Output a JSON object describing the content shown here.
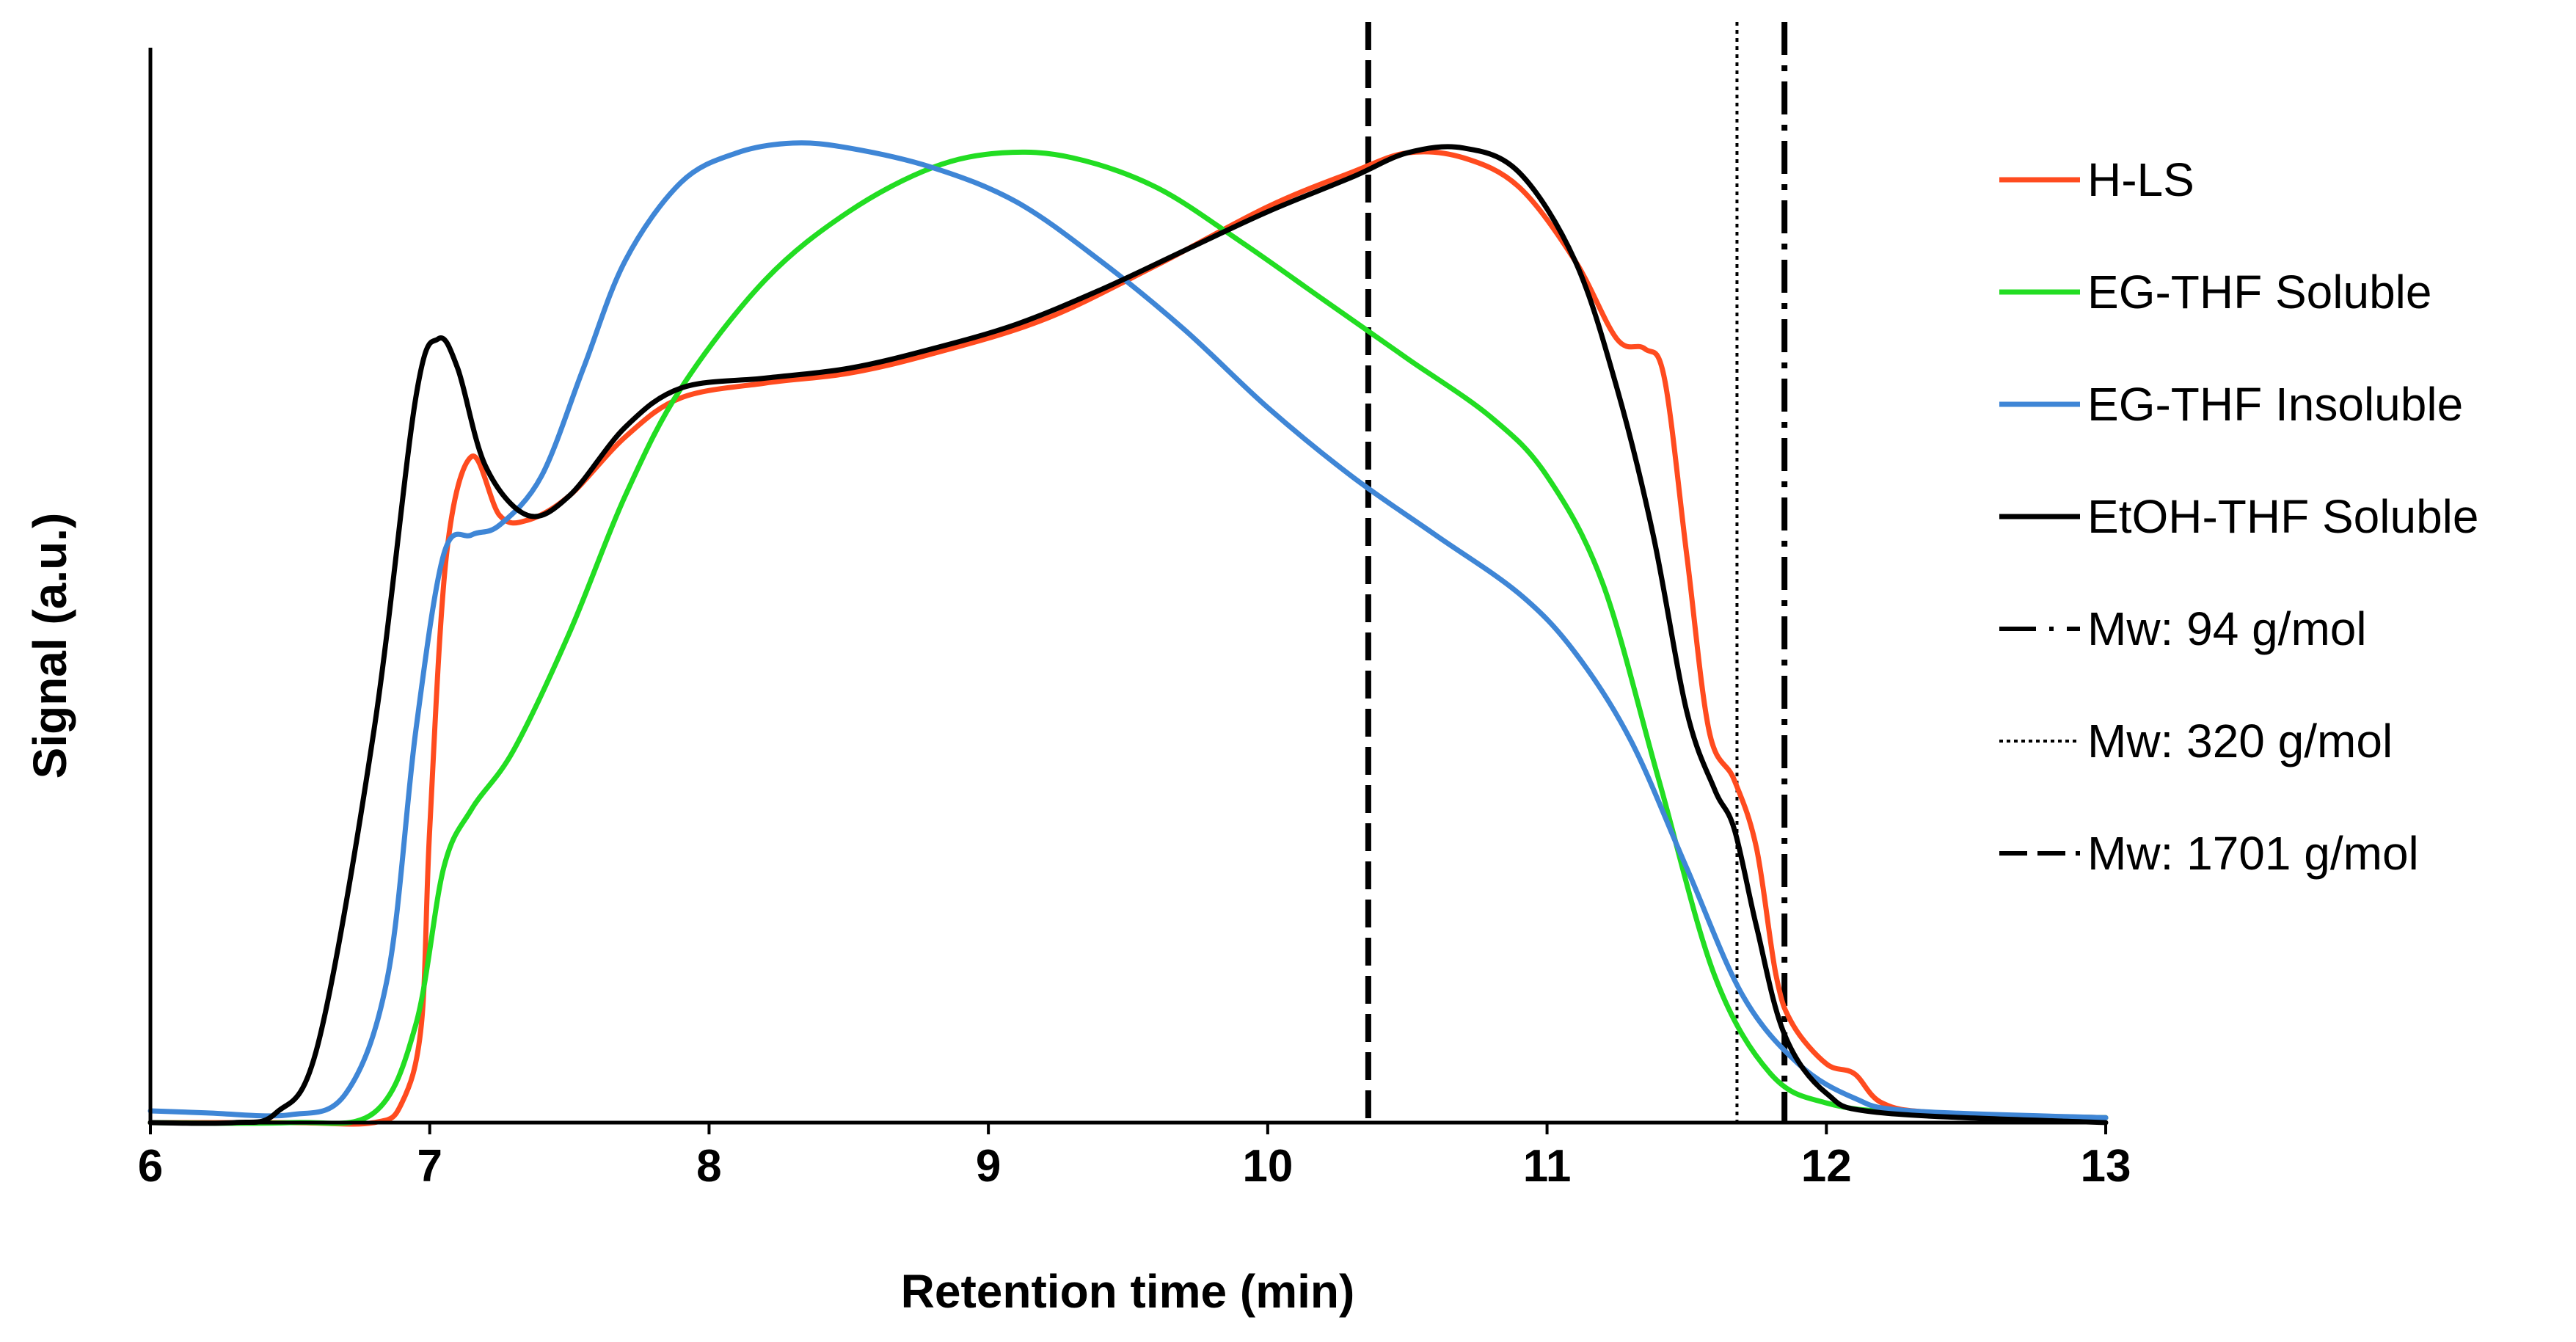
{
  "chart_data": {
    "type": "line",
    "title": "",
    "xlabel": "Retention time (min)",
    "ylabel": "Signal (a.u.)",
    "xlim": [
      6,
      13
    ],
    "ylim": [
      0,
      1
    ],
    "xticks": [
      "6",
      "7",
      "8",
      "9",
      "10",
      "11",
      "12",
      "13"
    ],
    "grid": false,
    "legend_position": "right",
    "series": [
      {
        "name": "H-LS",
        "color": "#FF4B1F",
        "points": [
          [
            6.0,
            0.0
          ],
          [
            6.5,
            0.0
          ],
          [
            6.8,
            0.0
          ],
          [
            6.9,
            0.02
          ],
          [
            6.97,
            0.1
          ],
          [
            7.0,
            0.3
          ],
          [
            7.06,
            0.58
          ],
          [
            7.15,
            0.68
          ],
          [
            7.25,
            0.62
          ],
          [
            7.35,
            0.615
          ],
          [
            7.5,
            0.64
          ],
          [
            7.7,
            0.7
          ],
          [
            7.9,
            0.74
          ],
          [
            8.2,
            0.755
          ],
          [
            8.5,
            0.765
          ],
          [
            8.8,
            0.785
          ],
          [
            9.2,
            0.82
          ],
          [
            9.6,
            0.875
          ],
          [
            10.0,
            0.935
          ],
          [
            10.3,
            0.97
          ],
          [
            10.5,
            0.99
          ],
          [
            10.7,
            0.985
          ],
          [
            10.9,
            0.955
          ],
          [
            11.1,
            0.88
          ],
          [
            11.25,
            0.8
          ],
          [
            11.35,
            0.79
          ],
          [
            11.42,
            0.76
          ],
          [
            11.5,
            0.58
          ],
          [
            11.58,
            0.4
          ],
          [
            11.67,
            0.35
          ],
          [
            11.75,
            0.28
          ],
          [
            11.82,
            0.15
          ],
          [
            11.88,
            0.1
          ],
          [
            12.0,
            0.06
          ],
          [
            12.1,
            0.05
          ],
          [
            12.2,
            0.02
          ],
          [
            12.4,
            0.01
          ],
          [
            13.0,
            0.005
          ]
        ]
      },
      {
        "name": "EG-THF Soluble",
        "color": "#22DD22",
        "points": [
          [
            6.0,
            0.0
          ],
          [
            6.5,
            0.0
          ],
          [
            6.8,
            0.01
          ],
          [
            6.95,
            0.1
          ],
          [
            7.05,
            0.26
          ],
          [
            7.15,
            0.32
          ],
          [
            7.3,
            0.38
          ],
          [
            7.5,
            0.5
          ],
          [
            7.7,
            0.64
          ],
          [
            7.9,
            0.75
          ],
          [
            8.2,
            0.86
          ],
          [
            8.5,
            0.93
          ],
          [
            8.8,
            0.975
          ],
          [
            9.05,
            0.99
          ],
          [
            9.3,
            0.985
          ],
          [
            9.6,
            0.955
          ],
          [
            9.9,
            0.9
          ],
          [
            10.2,
            0.84
          ],
          [
            10.5,
            0.78
          ],
          [
            10.8,
            0.72
          ],
          [
            11.0,
            0.66
          ],
          [
            11.2,
            0.55
          ],
          [
            11.4,
            0.35
          ],
          [
            11.6,
            0.15
          ],
          [
            11.8,
            0.05
          ],
          [
            12.0,
            0.02
          ],
          [
            12.3,
            0.01
          ],
          [
            13.0,
            0.005
          ]
        ]
      },
      {
        "name": "EG-THF Insoluble",
        "color": "#3F86D6",
        "points": [
          [
            6.0,
            0.012
          ],
          [
            6.2,
            0.01
          ],
          [
            6.5,
            0.008
          ],
          [
            6.7,
            0.03
          ],
          [
            6.85,
            0.15
          ],
          [
            6.95,
            0.4
          ],
          [
            7.05,
            0.58
          ],
          [
            7.15,
            0.6
          ],
          [
            7.25,
            0.61
          ],
          [
            7.4,
            0.66
          ],
          [
            7.55,
            0.77
          ],
          [
            7.7,
            0.88
          ],
          [
            7.9,
            0.96
          ],
          [
            8.1,
            0.99
          ],
          [
            8.3,
            1.0
          ],
          [
            8.5,
            0.995
          ],
          [
            8.8,
            0.975
          ],
          [
            9.1,
            0.94
          ],
          [
            9.4,
            0.88
          ],
          [
            9.7,
            0.81
          ],
          [
            10.0,
            0.73
          ],
          [
            10.3,
            0.66
          ],
          [
            10.6,
            0.6
          ],
          [
            10.9,
            0.54
          ],
          [
            11.1,
            0.48
          ],
          [
            11.3,
            0.39
          ],
          [
            11.5,
            0.26
          ],
          [
            11.7,
            0.13
          ],
          [
            11.9,
            0.06
          ],
          [
            12.1,
            0.025
          ],
          [
            12.3,
            0.012
          ],
          [
            13.0,
            0.005
          ]
        ]
      },
      {
        "name": "EtOH-THF Soluble",
        "color": "#000000",
        "points": [
          [
            6.0,
            0.0
          ],
          [
            6.3,
            0.0
          ],
          [
            6.45,
            0.01
          ],
          [
            6.6,
            0.08
          ],
          [
            6.8,
            0.4
          ],
          [
            6.95,
            0.74
          ],
          [
            7.03,
            0.8
          ],
          [
            7.1,
            0.77
          ],
          [
            7.2,
            0.67
          ],
          [
            7.35,
            0.62
          ],
          [
            7.5,
            0.64
          ],
          [
            7.7,
            0.71
          ],
          [
            7.9,
            0.75
          ],
          [
            8.2,
            0.76
          ],
          [
            8.5,
            0.77
          ],
          [
            8.8,
            0.79
          ],
          [
            9.1,
            0.815
          ],
          [
            9.4,
            0.85
          ],
          [
            9.7,
            0.89
          ],
          [
            10.0,
            0.93
          ],
          [
            10.3,
            0.965
          ],
          [
            10.5,
            0.99
          ],
          [
            10.7,
            0.995
          ],
          [
            10.9,
            0.97
          ],
          [
            11.1,
            0.88
          ],
          [
            11.25,
            0.75
          ],
          [
            11.38,
            0.6
          ],
          [
            11.5,
            0.42
          ],
          [
            11.6,
            0.34
          ],
          [
            11.67,
            0.3
          ],
          [
            11.75,
            0.2
          ],
          [
            11.85,
            0.09
          ],
          [
            12.0,
            0.03
          ],
          [
            12.2,
            0.01
          ],
          [
            13.0,
            0.0
          ]
        ]
      }
    ],
    "reference_lines": [
      {
        "label": "Mw: 94 g/mol",
        "x": 11.85,
        "style": "dashdot"
      },
      {
        "label": "Mw: 320 g/mol",
        "x": 11.68,
        "style": "dotted"
      },
      {
        "label": "Mw: 1701 g/mol",
        "x": 10.36,
        "style": "dashed"
      }
    ]
  }
}
